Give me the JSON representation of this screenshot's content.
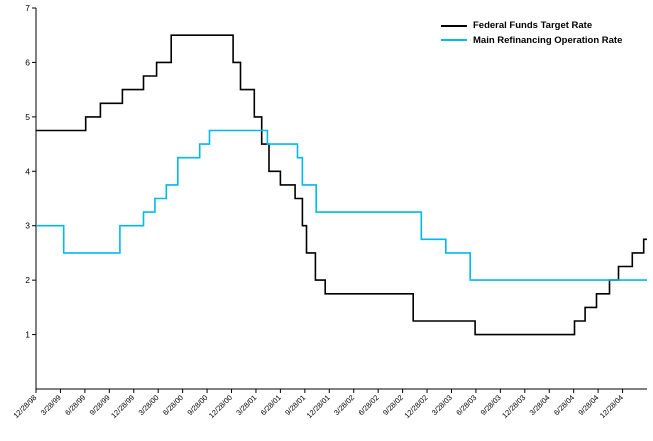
{
  "chart_data": {
    "type": "line",
    "title": "",
    "subtitle": "",
    "grid": false,
    "legend_position": "top-right-inside",
    "x_axis": {
      "label": "",
      "unit": "months since 12/28/98",
      "xlim": [
        0,
        75
      ],
      "tick_positions": [
        0,
        3,
        6,
        9,
        12,
        15,
        18,
        21,
        24,
        27,
        30,
        33,
        36,
        39,
        42,
        45,
        48,
        51,
        54,
        57,
        60,
        63,
        66,
        69,
        72
      ],
      "tick_labels": [
        "12/28/98",
        "3/28/99",
        "6/28/99",
        "9/28/99",
        "12/28/99",
        "3/28/00",
        "6/28/00",
        "9/28/00",
        "12/28/00",
        "3/28/01",
        "6/28/01",
        "9/28/01",
        "12/28/01",
        "3/28/02",
        "6/28/02",
        "9/28/02",
        "12/28/02",
        "3/28/03",
        "6/28/03",
        "9/28/03",
        "12/28/03",
        "3/28/04",
        "6/28/04",
        "9/28/04",
        "12/28/04"
      ]
    },
    "y_axis": {
      "label": "",
      "unit": "percent",
      "ylim": [
        0,
        7
      ],
      "ticks": [
        1,
        2,
        3,
        4,
        5,
        6,
        7
      ]
    },
    "series": [
      {
        "name": "Federal Funds Target Rate",
        "color": "#000000",
        "interpolation": "step-after",
        "points": [
          [
            0,
            4.75
          ],
          [
            6.1,
            5.0
          ],
          [
            7.9,
            5.25
          ],
          [
            10.6,
            5.5
          ],
          [
            13.2,
            5.75
          ],
          [
            14.8,
            6.0
          ],
          [
            16.6,
            6.5
          ],
          [
            24.2,
            6.0
          ],
          [
            25.1,
            5.5
          ],
          [
            26.8,
            5.0
          ],
          [
            27.7,
            4.5
          ],
          [
            28.6,
            4.0
          ],
          [
            30.0,
            3.75
          ],
          [
            31.8,
            3.5
          ],
          [
            32.7,
            3.0
          ],
          [
            33.2,
            2.5
          ],
          [
            34.3,
            2.0
          ],
          [
            35.5,
            1.75
          ],
          [
            46.3,
            1.25
          ],
          [
            53.9,
            1.0
          ],
          [
            66.1,
            1.25
          ],
          [
            67.4,
            1.5
          ],
          [
            68.8,
            1.75
          ],
          [
            70.4,
            2.0
          ],
          [
            71.5,
            2.25
          ],
          [
            73.2,
            2.5
          ],
          [
            74.6,
            2.75
          ]
        ]
      },
      {
        "name": "Main Refinancing Operation Rate",
        "color": "#00B9EC",
        "interpolation": "step-after",
        "points": [
          [
            0,
            3.0
          ],
          [
            3.4,
            2.5
          ],
          [
            10.3,
            3.0
          ],
          [
            13.2,
            3.25
          ],
          [
            14.6,
            3.5
          ],
          [
            16.0,
            3.75
          ],
          [
            17.4,
            4.25
          ],
          [
            20.1,
            4.5
          ],
          [
            21.3,
            4.75
          ],
          [
            28.4,
            4.5
          ],
          [
            32.1,
            4.25
          ],
          [
            32.7,
            3.75
          ],
          [
            34.4,
            3.25
          ],
          [
            47.3,
            2.75
          ],
          [
            50.3,
            2.5
          ],
          [
            53.3,
            2.0
          ]
        ]
      }
    ]
  }
}
